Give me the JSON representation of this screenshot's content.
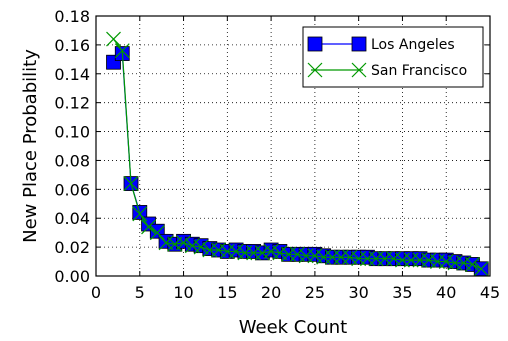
{
  "chart_data": {
    "type": "scatter",
    "xlabel": "Week Count",
    "ylabel": "New Place Probability",
    "xlim": [
      0,
      45
    ],
    "ylim": [
      0.0,
      0.18
    ],
    "xticks": [
      0,
      5,
      10,
      15,
      20,
      25,
      30,
      35,
      40,
      45
    ],
    "yticks": [
      0.0,
      0.02,
      0.04,
      0.06,
      0.08,
      0.1,
      0.12,
      0.14,
      0.16,
      0.18
    ],
    "xtick_labels": [
      "0",
      "5",
      "10",
      "15",
      "20",
      "25",
      "30",
      "35",
      "40",
      "45"
    ],
    "ytick_labels": [
      "0.00",
      "0.02",
      "0.04",
      "0.06",
      "0.08",
      "0.10",
      "0.12",
      "0.14",
      "0.16",
      "0.18"
    ],
    "grid": true,
    "legend_position": "top-right",
    "series": [
      {
        "name": "Los Angeles",
        "color": "#0000ff",
        "marker": "square",
        "x": [
          2,
          3,
          4,
          5,
          6,
          7,
          8,
          9,
          10,
          11,
          12,
          13,
          14,
          15,
          16,
          17,
          18,
          19,
          20,
          21,
          22,
          23,
          24,
          25,
          26,
          27,
          28,
          29,
          30,
          31,
          32,
          33,
          34,
          35,
          36,
          37,
          38,
          39,
          40,
          41,
          42,
          43,
          44
        ],
        "y": [
          0.148,
          0.154,
          0.064,
          0.044,
          0.036,
          0.031,
          0.024,
          0.022,
          0.024,
          0.022,
          0.021,
          0.019,
          0.018,
          0.017,
          0.018,
          0.017,
          0.017,
          0.016,
          0.018,
          0.017,
          0.015,
          0.015,
          0.015,
          0.015,
          0.014,
          0.013,
          0.013,
          0.013,
          0.013,
          0.013,
          0.012,
          0.012,
          0.012,
          0.012,
          0.012,
          0.012,
          0.011,
          0.011,
          0.011,
          0.01,
          0.009,
          0.008,
          0.005
        ]
      },
      {
        "name": "San Francisco",
        "color": "#009900",
        "marker": "x",
        "x": [
          2,
          3,
          4,
          5,
          6,
          7,
          8,
          9,
          10,
          11,
          12,
          13,
          14,
          15,
          16,
          17,
          18,
          19,
          20,
          21,
          22,
          23,
          24,
          25,
          26,
          27,
          28,
          29,
          30,
          31,
          32,
          33,
          34,
          35,
          36,
          37,
          38,
          39,
          40,
          41,
          42,
          43,
          44
        ],
        "y": [
          0.164,
          0.156,
          0.064,
          0.043,
          0.034,
          0.03,
          0.023,
          0.022,
          0.023,
          0.021,
          0.02,
          0.018,
          0.018,
          0.017,
          0.017,
          0.016,
          0.016,
          0.016,
          0.017,
          0.016,
          0.015,
          0.015,
          0.014,
          0.014,
          0.013,
          0.013,
          0.013,
          0.013,
          0.012,
          0.012,
          0.012,
          0.012,
          0.012,
          0.011,
          0.011,
          0.011,
          0.011,
          0.01,
          0.01,
          0.009,
          0.009,
          0.008,
          0.005
        ]
      }
    ]
  }
}
